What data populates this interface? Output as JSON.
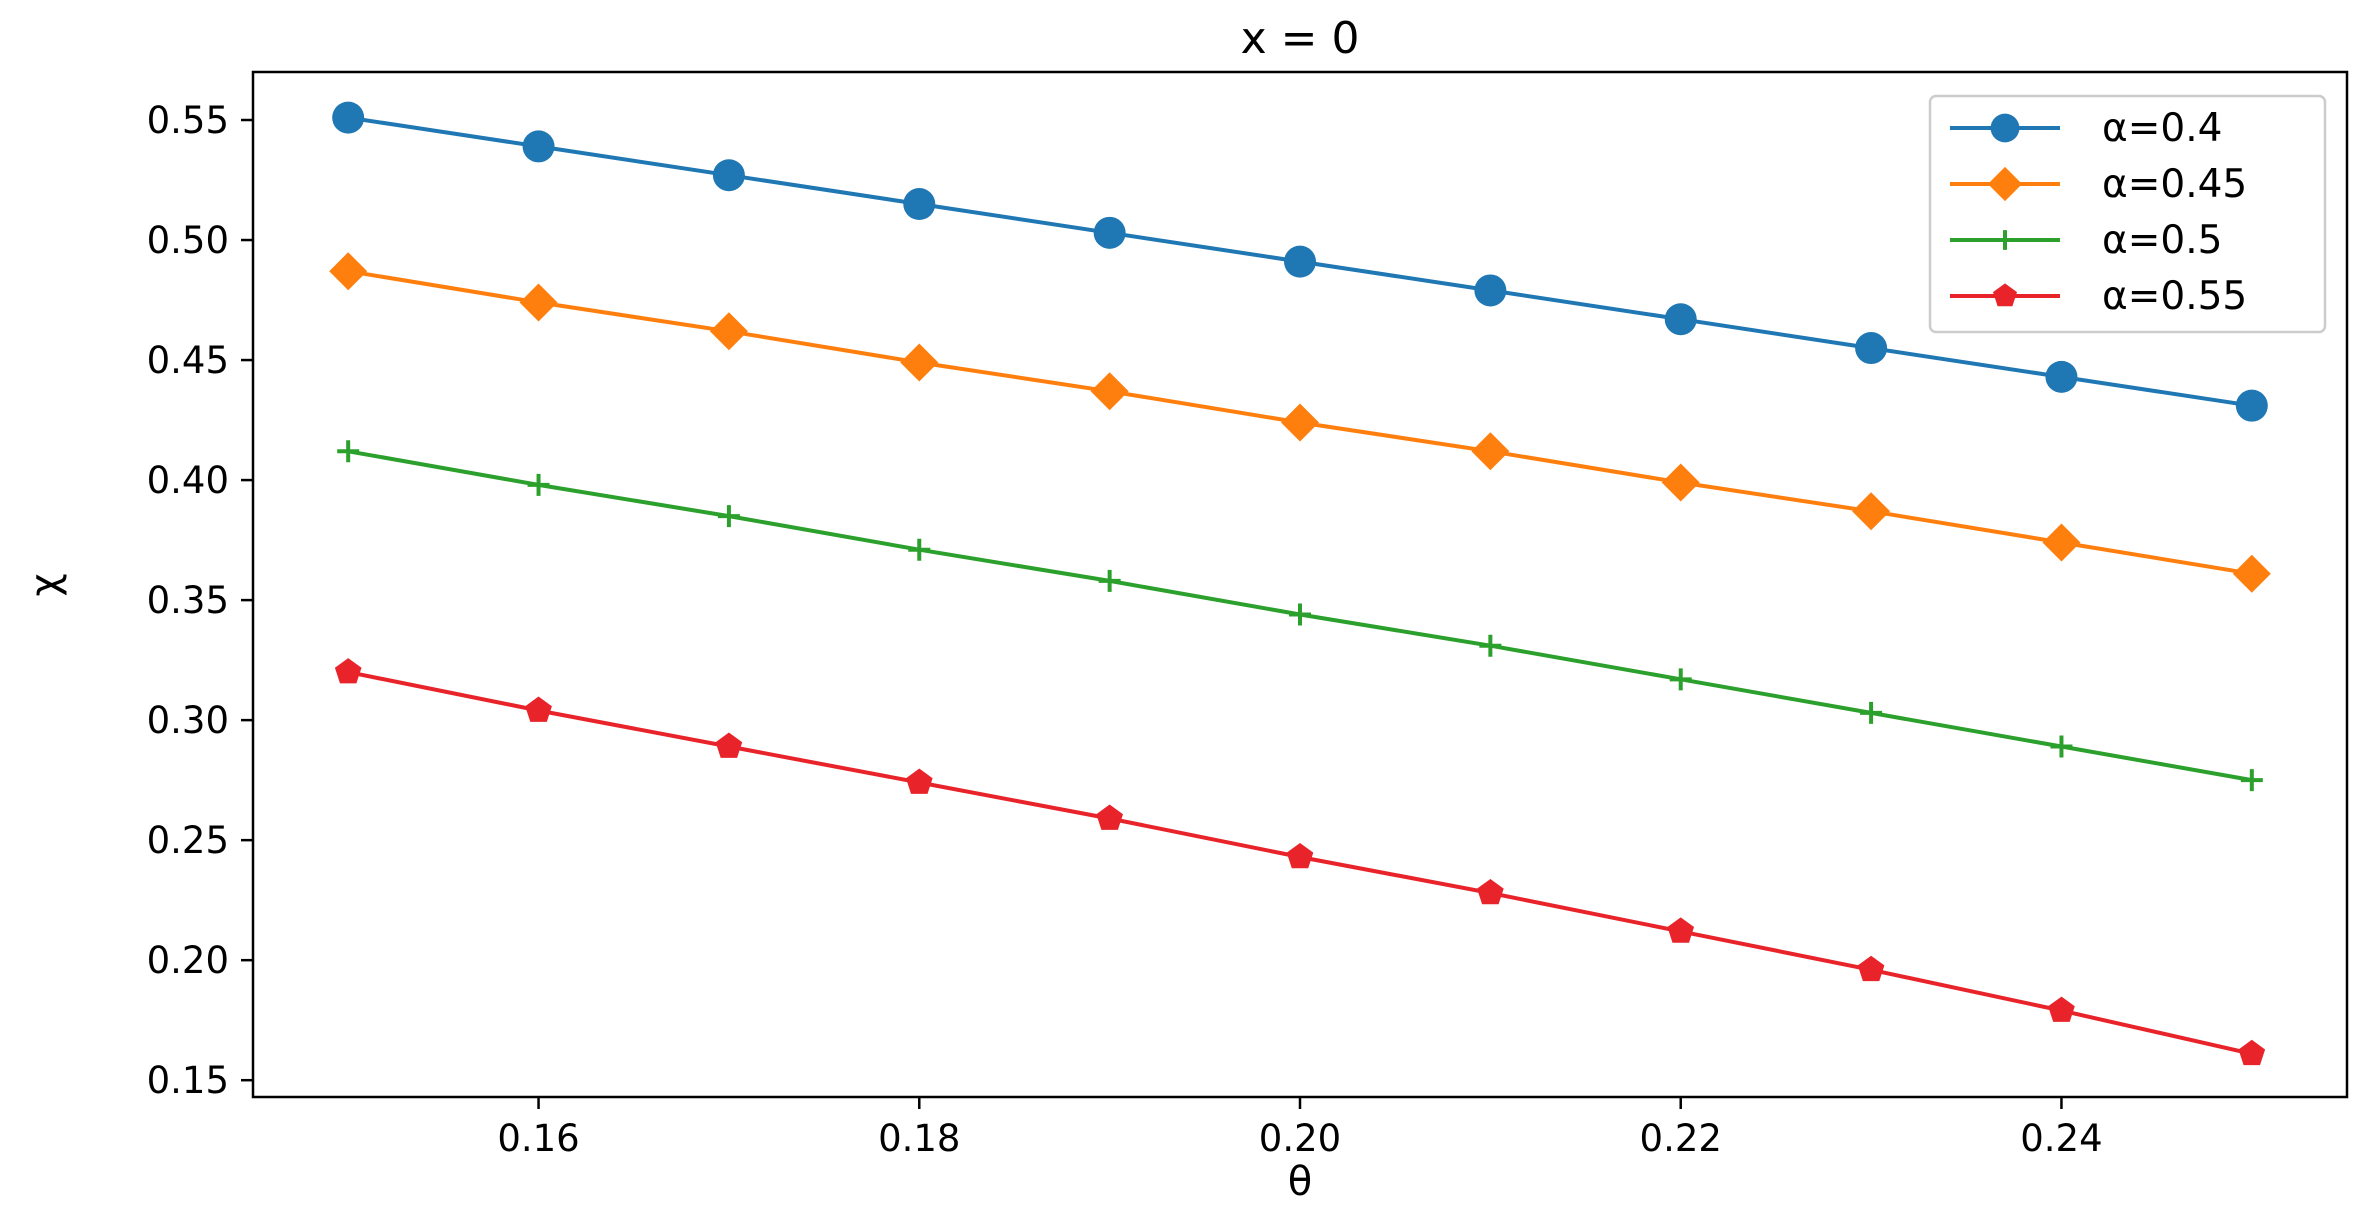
{
  "chart_data": {
    "type": "line",
    "title": "x = 0",
    "xlabel": "θ",
    "ylabel": "χ",
    "xlim": [
      0.145,
      0.255
    ],
    "ylim": [
      0.143,
      0.57
    ],
    "x_ticks": [
      0.16,
      0.18,
      0.2,
      0.22,
      0.24
    ],
    "x_tick_labels": [
      "0.16",
      "0.18",
      "0.20",
      "0.22",
      "0.24"
    ],
    "y_ticks": [
      0.15,
      0.2,
      0.25,
      0.3,
      0.35,
      0.4,
      0.45,
      0.5,
      0.55
    ],
    "y_tick_labels": [
      "0.15",
      "0.20",
      "0.25",
      "0.30",
      "0.35",
      "0.40",
      "0.45",
      "0.50",
      "0.55"
    ],
    "grid": false,
    "legend_position": "top-right",
    "x": [
      0.15,
      0.16,
      0.17,
      0.18,
      0.19,
      0.2,
      0.21,
      0.22,
      0.23,
      0.24,
      0.25
    ],
    "series": [
      {
        "name": "α=0.4",
        "color": "#1f77b4",
        "marker": "circle",
        "values": [
          0.551,
          0.539,
          0.527,
          0.515,
          0.503,
          0.491,
          0.479,
          0.467,
          0.455,
          0.443,
          0.431
        ]
      },
      {
        "name": "α=0.45",
        "color": "#ff7f0e",
        "marker": "diamond",
        "values": [
          0.487,
          0.474,
          0.462,
          0.449,
          0.437,
          0.424,
          0.412,
          0.399,
          0.387,
          0.374,
          0.361
        ]
      },
      {
        "name": "α=0.5",
        "color": "#2ca02c",
        "marker": "plus",
        "values": [
          0.412,
          0.398,
          0.385,
          0.371,
          0.358,
          0.344,
          0.331,
          0.317,
          0.303,
          0.289,
          0.275
        ]
      },
      {
        "name": "α=0.55",
        "color": "#e8242a",
        "marker": "pentagon",
        "values": [
          0.32,
          0.304,
          0.289,
          0.274,
          0.259,
          0.243,
          0.228,
          0.212,
          0.196,
          0.179,
          0.161
        ]
      }
    ]
  }
}
